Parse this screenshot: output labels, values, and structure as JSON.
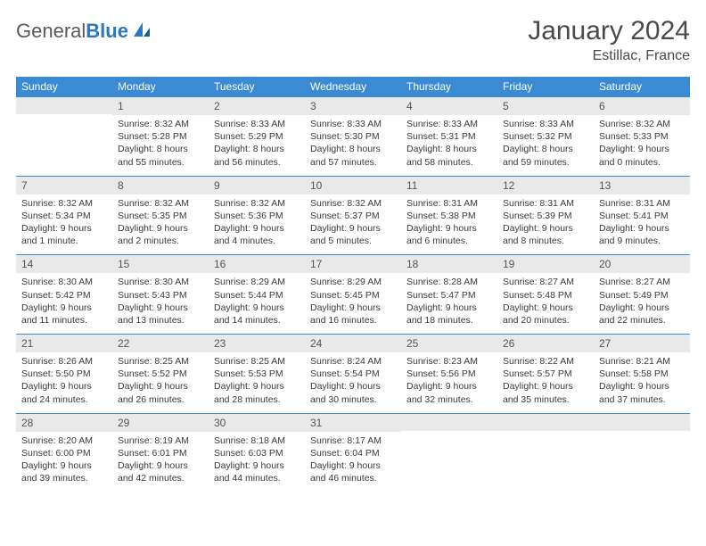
{
  "brand": {
    "part1": "General",
    "part2": "Blue"
  },
  "title": "January 2024",
  "location": "Estillac, France",
  "colors": {
    "header_bg": "#3b8bd4",
    "header_text": "#ffffff",
    "daynum_bg": "#e9e9e9",
    "row_border": "#3b8bd4",
    "page_bg": "#ffffff",
    "brand_blue": "#2b77c0",
    "brand_gray": "#5a5a5a"
  },
  "weekdays": [
    "Sunday",
    "Monday",
    "Tuesday",
    "Wednesday",
    "Thursday",
    "Friday",
    "Saturday"
  ],
  "weeks": [
    [
      {
        "n": "",
        "sr": "",
        "ss": "",
        "dl": ""
      },
      {
        "n": "1",
        "sr": "Sunrise: 8:32 AM",
        "ss": "Sunset: 5:28 PM",
        "dl": "Daylight: 8 hours and 55 minutes."
      },
      {
        "n": "2",
        "sr": "Sunrise: 8:33 AM",
        "ss": "Sunset: 5:29 PM",
        "dl": "Daylight: 8 hours and 56 minutes."
      },
      {
        "n": "3",
        "sr": "Sunrise: 8:33 AM",
        "ss": "Sunset: 5:30 PM",
        "dl": "Daylight: 8 hours and 57 minutes."
      },
      {
        "n": "4",
        "sr": "Sunrise: 8:33 AM",
        "ss": "Sunset: 5:31 PM",
        "dl": "Daylight: 8 hours and 58 minutes."
      },
      {
        "n": "5",
        "sr": "Sunrise: 8:33 AM",
        "ss": "Sunset: 5:32 PM",
        "dl": "Daylight: 8 hours and 59 minutes."
      },
      {
        "n": "6",
        "sr": "Sunrise: 8:32 AM",
        "ss": "Sunset: 5:33 PM",
        "dl": "Daylight: 9 hours and 0 minutes."
      }
    ],
    [
      {
        "n": "7",
        "sr": "Sunrise: 8:32 AM",
        "ss": "Sunset: 5:34 PM",
        "dl": "Daylight: 9 hours and 1 minute."
      },
      {
        "n": "8",
        "sr": "Sunrise: 8:32 AM",
        "ss": "Sunset: 5:35 PM",
        "dl": "Daylight: 9 hours and 2 minutes."
      },
      {
        "n": "9",
        "sr": "Sunrise: 8:32 AM",
        "ss": "Sunset: 5:36 PM",
        "dl": "Daylight: 9 hours and 4 minutes."
      },
      {
        "n": "10",
        "sr": "Sunrise: 8:32 AM",
        "ss": "Sunset: 5:37 PM",
        "dl": "Daylight: 9 hours and 5 minutes."
      },
      {
        "n": "11",
        "sr": "Sunrise: 8:31 AM",
        "ss": "Sunset: 5:38 PM",
        "dl": "Daylight: 9 hours and 6 minutes."
      },
      {
        "n": "12",
        "sr": "Sunrise: 8:31 AM",
        "ss": "Sunset: 5:39 PM",
        "dl": "Daylight: 9 hours and 8 minutes."
      },
      {
        "n": "13",
        "sr": "Sunrise: 8:31 AM",
        "ss": "Sunset: 5:41 PM",
        "dl": "Daylight: 9 hours and 9 minutes."
      }
    ],
    [
      {
        "n": "14",
        "sr": "Sunrise: 8:30 AM",
        "ss": "Sunset: 5:42 PM",
        "dl": "Daylight: 9 hours and 11 minutes."
      },
      {
        "n": "15",
        "sr": "Sunrise: 8:30 AM",
        "ss": "Sunset: 5:43 PM",
        "dl": "Daylight: 9 hours and 13 minutes."
      },
      {
        "n": "16",
        "sr": "Sunrise: 8:29 AM",
        "ss": "Sunset: 5:44 PM",
        "dl": "Daylight: 9 hours and 14 minutes."
      },
      {
        "n": "17",
        "sr": "Sunrise: 8:29 AM",
        "ss": "Sunset: 5:45 PM",
        "dl": "Daylight: 9 hours and 16 minutes."
      },
      {
        "n": "18",
        "sr": "Sunrise: 8:28 AM",
        "ss": "Sunset: 5:47 PM",
        "dl": "Daylight: 9 hours and 18 minutes."
      },
      {
        "n": "19",
        "sr": "Sunrise: 8:27 AM",
        "ss": "Sunset: 5:48 PM",
        "dl": "Daylight: 9 hours and 20 minutes."
      },
      {
        "n": "20",
        "sr": "Sunrise: 8:27 AM",
        "ss": "Sunset: 5:49 PM",
        "dl": "Daylight: 9 hours and 22 minutes."
      }
    ],
    [
      {
        "n": "21",
        "sr": "Sunrise: 8:26 AM",
        "ss": "Sunset: 5:50 PM",
        "dl": "Daylight: 9 hours and 24 minutes."
      },
      {
        "n": "22",
        "sr": "Sunrise: 8:25 AM",
        "ss": "Sunset: 5:52 PM",
        "dl": "Daylight: 9 hours and 26 minutes."
      },
      {
        "n": "23",
        "sr": "Sunrise: 8:25 AM",
        "ss": "Sunset: 5:53 PM",
        "dl": "Daylight: 9 hours and 28 minutes."
      },
      {
        "n": "24",
        "sr": "Sunrise: 8:24 AM",
        "ss": "Sunset: 5:54 PM",
        "dl": "Daylight: 9 hours and 30 minutes."
      },
      {
        "n": "25",
        "sr": "Sunrise: 8:23 AM",
        "ss": "Sunset: 5:56 PM",
        "dl": "Daylight: 9 hours and 32 minutes."
      },
      {
        "n": "26",
        "sr": "Sunrise: 8:22 AM",
        "ss": "Sunset: 5:57 PM",
        "dl": "Daylight: 9 hours and 35 minutes."
      },
      {
        "n": "27",
        "sr": "Sunrise: 8:21 AM",
        "ss": "Sunset: 5:58 PM",
        "dl": "Daylight: 9 hours and 37 minutes."
      }
    ],
    [
      {
        "n": "28",
        "sr": "Sunrise: 8:20 AM",
        "ss": "Sunset: 6:00 PM",
        "dl": "Daylight: 9 hours and 39 minutes."
      },
      {
        "n": "29",
        "sr": "Sunrise: 8:19 AM",
        "ss": "Sunset: 6:01 PM",
        "dl": "Daylight: 9 hours and 42 minutes."
      },
      {
        "n": "30",
        "sr": "Sunrise: 8:18 AM",
        "ss": "Sunset: 6:03 PM",
        "dl": "Daylight: 9 hours and 44 minutes."
      },
      {
        "n": "31",
        "sr": "Sunrise: 8:17 AM",
        "ss": "Sunset: 6:04 PM",
        "dl": "Daylight: 9 hours and 46 minutes."
      },
      {
        "n": "",
        "sr": "",
        "ss": "",
        "dl": ""
      },
      {
        "n": "",
        "sr": "",
        "ss": "",
        "dl": ""
      },
      {
        "n": "",
        "sr": "",
        "ss": "",
        "dl": ""
      }
    ]
  ]
}
